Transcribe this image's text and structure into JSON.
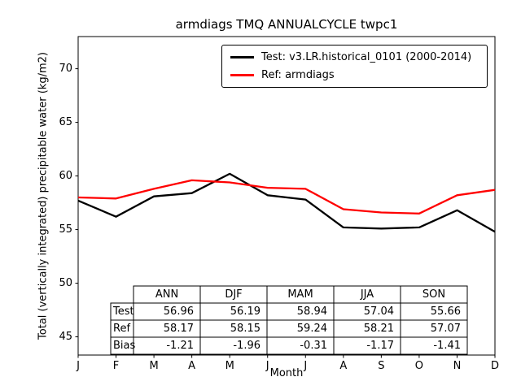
{
  "chart_data": {
    "type": "line",
    "title": "armdiags TMQ ANNUALCYCLE twpc1",
    "xlabel": "Month",
    "ylabel": "Total (vertically integrated) precipitable water (kg/m2)",
    "x_tick_labels": [
      "J",
      "F",
      "M",
      "A",
      "M",
      "J",
      "J",
      "A",
      "S",
      "O",
      "N",
      "D"
    ],
    "yticks": [
      45,
      50,
      55,
      60,
      65,
      70
    ],
    "ylim": [
      43.3,
      73.0
    ],
    "xlim": [
      0,
      11
    ],
    "grid": false,
    "legend_position": "upper right",
    "series": [
      {
        "id": "test",
        "name": "Test: v3.LR.historical_0101 (2000-2014)",
        "color": "#000000",
        "values": [
          57.7,
          56.2,
          58.1,
          58.4,
          60.2,
          58.2,
          57.8,
          55.2,
          55.1,
          55.2,
          56.8,
          54.8
        ]
      },
      {
        "id": "ref",
        "name": "Ref: armdiags",
        "color": "#ff0000",
        "values": [
          58.0,
          57.9,
          58.8,
          59.6,
          59.4,
          58.9,
          58.8,
          56.9,
          56.6,
          56.5,
          58.2,
          58.7
        ]
      }
    ],
    "table": {
      "columns": [
        "ANN",
        "DJF",
        "MAM",
        "JJA",
        "SON"
      ],
      "rows": [
        {
          "label": "Test",
          "values": [
            "56.96",
            "56.19",
            "58.94",
            "57.04",
            "55.66"
          ]
        },
        {
          "label": "Ref",
          "values": [
            "58.17",
            "58.15",
            "59.24",
            "58.21",
            "57.07"
          ]
        },
        {
          "label": "Bias",
          "values": [
            "-1.21",
            "-1.96",
            "-0.31",
            "-1.17",
            "-1.41"
          ]
        }
      ]
    }
  }
}
